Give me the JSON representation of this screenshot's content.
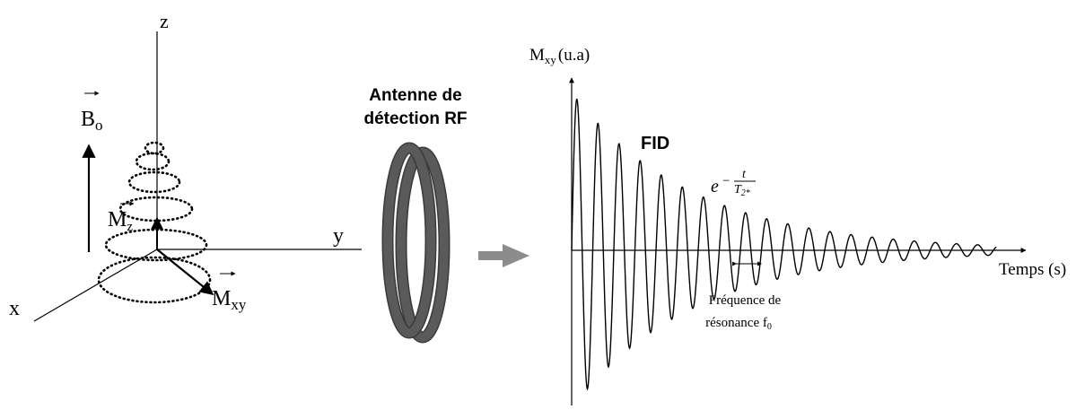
{
  "axes3d": {
    "z_label": "z",
    "y_label": "y",
    "x_label": "x",
    "b0_main": "B",
    "b0_sub": "o",
    "mz_main": "M",
    "mz_sub": "z",
    "mxy_main": "M",
    "mxy_sub": "xy"
  },
  "antenna": {
    "line1": "Antenne de",
    "line2": "détection RF"
  },
  "signal": {
    "ylabel_main": "M",
    "ylabel_sub": "xy",
    "ylabel_units": "(u.a)",
    "xlabel": "Temps (s)",
    "fid_label": "FID",
    "decay_base": "e",
    "decay_minus": "−",
    "decay_num": "t",
    "decay_den": "T",
    "decay_den_sub": "2*",
    "freq_line1": "Fréquence de",
    "freq_line2": "résonance f",
    "freq_sub": "0"
  },
  "colors": {
    "ink": "#000000",
    "ring": "#5a5a5a",
    "ring_edge": "#3a3a3a",
    "arrow_gray": "#8c8c8c"
  }
}
